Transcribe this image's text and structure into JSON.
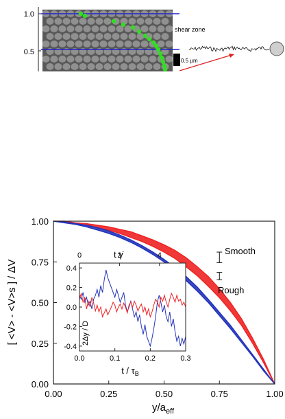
{
  "top_panel": {
    "ytick_labels": [
      "1.0",
      "0.5"
    ],
    "shear_zone_label": "shear zone",
    "scale_bar_label": "0.5 µm",
    "colors": {
      "particles_bg": "#5e5e5e",
      "green_track": "#33dd22",
      "blue_line": "#2222cc",
      "red_arrow": "#dd2222"
    }
  },
  "chart_data": [
    {
      "type": "line",
      "xlabel_main": "y/a",
      "xlabel_sub": "eff",
      "ylabel": "[ <V> - <V>s ] / ΔV",
      "xlim": [
        0.0,
        1.0
      ],
      "ylim": [
        0.0,
        1.0
      ],
      "xticks": [
        "0.00",
        "0.25",
        "0.50",
        "0.75",
        "1.00"
      ],
      "yticks": [
        "0.00",
        "0.25",
        "0.50",
        "0.75",
        "1.00"
      ],
      "series": [
        {
          "name": "Smooth",
          "color": "#ee2222",
          "x": [
            0.0,
            0.05,
            0.1,
            0.15,
            0.2,
            0.25,
            0.3,
            0.35,
            0.4,
            0.45,
            0.5,
            0.55,
            0.6,
            0.65,
            0.7,
            0.75,
            0.8,
            0.85,
            0.9,
            0.95,
            1.0
          ],
          "y_upper": [
            1.0,
            1.0,
            0.99,
            0.985,
            0.975,
            0.965,
            0.95,
            0.935,
            0.91,
            0.885,
            0.855,
            0.82,
            0.775,
            0.72,
            0.66,
            0.585,
            0.5,
            0.4,
            0.28,
            0.15,
            0.0
          ],
          "y_lower": [
            1.0,
            0.995,
            0.985,
            0.975,
            0.96,
            0.945,
            0.925,
            0.9,
            0.875,
            0.845,
            0.81,
            0.77,
            0.72,
            0.665,
            0.6,
            0.53,
            0.45,
            0.36,
            0.25,
            0.13,
            0.0
          ]
        },
        {
          "name": "Rough",
          "color": "#2233bb",
          "x": [
            0.0,
            0.05,
            0.1,
            0.15,
            0.2,
            0.25,
            0.3,
            0.35,
            0.4,
            0.45,
            0.5,
            0.55,
            0.6,
            0.65,
            0.7,
            0.75,
            0.8,
            0.85,
            0.9,
            0.95,
            1.0
          ],
          "y_upper": [
            1.0,
            0.995,
            0.985,
            0.975,
            0.96,
            0.94,
            0.915,
            0.885,
            0.85,
            0.81,
            0.765,
            0.715,
            0.66,
            0.595,
            0.52,
            0.44,
            0.36,
            0.27,
            0.18,
            0.09,
            0.0
          ],
          "y_lower": [
            1.0,
            0.99,
            0.98,
            0.965,
            0.945,
            0.925,
            0.9,
            0.87,
            0.835,
            0.795,
            0.75,
            0.695,
            0.635,
            0.57,
            0.5,
            0.42,
            0.34,
            0.255,
            0.17,
            0.08,
            0.0
          ]
        }
      ],
      "error_bars": [
        {
          "series": "Smooth",
          "x": 0.75,
          "y": 0.775,
          "low": 0.745,
          "high": 0.81
        },
        {
          "series": "Rough",
          "x": 0.75,
          "y": 0.66,
          "low": 0.64,
          "high": 0.685
        }
      ],
      "annotations": {
        "smooth": "Smooth",
        "rough": "Rough"
      }
    },
    {
      "type": "line",
      "xlabel_main": "t / τ",
      "xlabel_sub": "B",
      "ylabel": "2Δy / D",
      "top_axis_label": "t γ̇",
      "top_ticks": [
        "0",
        "2",
        "4"
      ],
      "top_tick_values": [
        0.0,
        0.113,
        0.226
      ],
      "xlim": [
        0.0,
        0.3
      ],
      "ylim": [
        -0.45,
        0.45
      ],
      "xticks": [
        "0.0",
        "0.1",
        "0.2",
        "0.3"
      ],
      "yticks": [
        "0.4",
        "0.2",
        "0.0",
        "-0.2",
        "-0.4"
      ],
      "series": [
        {
          "name": "blue",
          "color": "#2233bb",
          "x": [
            0.0,
            0.005,
            0.01,
            0.015,
            0.02,
            0.025,
            0.03,
            0.035,
            0.04,
            0.045,
            0.05,
            0.055,
            0.06,
            0.065,
            0.07,
            0.075,
            0.08,
            0.085,
            0.09,
            0.095,
            0.1,
            0.105,
            0.11,
            0.115,
            0.12,
            0.125,
            0.13,
            0.135,
            0.14,
            0.145,
            0.15,
            0.155,
            0.16,
            0.165,
            0.17,
            0.175,
            0.18,
            0.185,
            0.19,
            0.195,
            0.2,
            0.205,
            0.21,
            0.215,
            0.22,
            0.225,
            0.23,
            0.235,
            0.24,
            0.245,
            0.25,
            0.255,
            0.26,
            0.265,
            0.27,
            0.275,
            0.28,
            0.285,
            0.29,
            0.295,
            0.3
          ],
          "y": [
            0.12,
            0.08,
            0.15,
            0.05,
            0.1,
            0.02,
            0.06,
            -0.02,
            0.08,
            0.12,
            0.18,
            0.1,
            0.22,
            0.15,
            0.28,
            0.38,
            0.3,
            0.25,
            0.2,
            0.15,
            0.1,
            0.18,
            0.12,
            0.05,
            0.1,
            0.15,
            0.02,
            -0.05,
            0.0,
            0.06,
            -0.02,
            -0.1,
            -0.05,
            -0.15,
            -0.08,
            -0.2,
            -0.28,
            -0.18,
            -0.3,
            -0.35,
            -0.4,
            -0.32,
            -0.22,
            -0.1,
            0.05,
            0.12,
            0.05,
            -0.05,
            0.02,
            -0.1,
            -0.15,
            -0.05,
            -0.2,
            -0.12,
            -0.25,
            -0.35,
            -0.3,
            -0.4,
            -0.32,
            -0.38,
            -0.3
          ]
        },
        {
          "name": "red",
          "color": "#ee2222",
          "x": [
            0.0,
            0.005,
            0.01,
            0.015,
            0.02,
            0.025,
            0.03,
            0.035,
            0.04,
            0.045,
            0.05,
            0.055,
            0.06,
            0.065,
            0.07,
            0.075,
            0.08,
            0.085,
            0.09,
            0.095,
            0.1,
            0.105,
            0.11,
            0.115,
            0.12,
            0.125,
            0.13,
            0.135,
            0.14,
            0.145,
            0.15,
            0.155,
            0.16,
            0.165,
            0.17,
            0.175,
            0.18,
            0.185,
            0.19,
            0.195,
            0.2,
            0.205,
            0.21,
            0.215,
            0.22,
            0.225,
            0.23,
            0.235,
            0.24,
            0.245,
            0.25,
            0.255,
            0.26,
            0.265,
            0.27,
            0.275,
            0.28,
            0.285,
            0.29,
            0.295,
            0.3
          ],
          "y": [
            0.08,
            0.14,
            0.05,
            0.1,
            -0.02,
            0.06,
            0.0,
            0.1,
            0.04,
            -0.04,
            0.02,
            -0.05,
            0.0,
            -0.1,
            -0.06,
            -0.02,
            -0.08,
            -0.04,
            0.0,
            0.05,
            0.02,
            -0.05,
            0.0,
            0.03,
            -0.02,
            0.04,
            0.0,
            -0.06,
            0.02,
            0.05,
            0.0,
            0.06,
            0.02,
            -0.04,
            0.0,
            0.03,
            -0.05,
            0.0,
            -0.08,
            -0.02,
            -0.1,
            -0.05,
            0.02,
            0.08,
            0.05,
            0.0,
            0.1,
            0.06,
            0.12,
            0.05,
            0.0,
            0.08,
            0.14,
            0.1,
            0.05,
            0.12,
            0.06,
            0.08,
            0.02,
            0.05,
            0.0
          ]
        }
      ]
    }
  ]
}
